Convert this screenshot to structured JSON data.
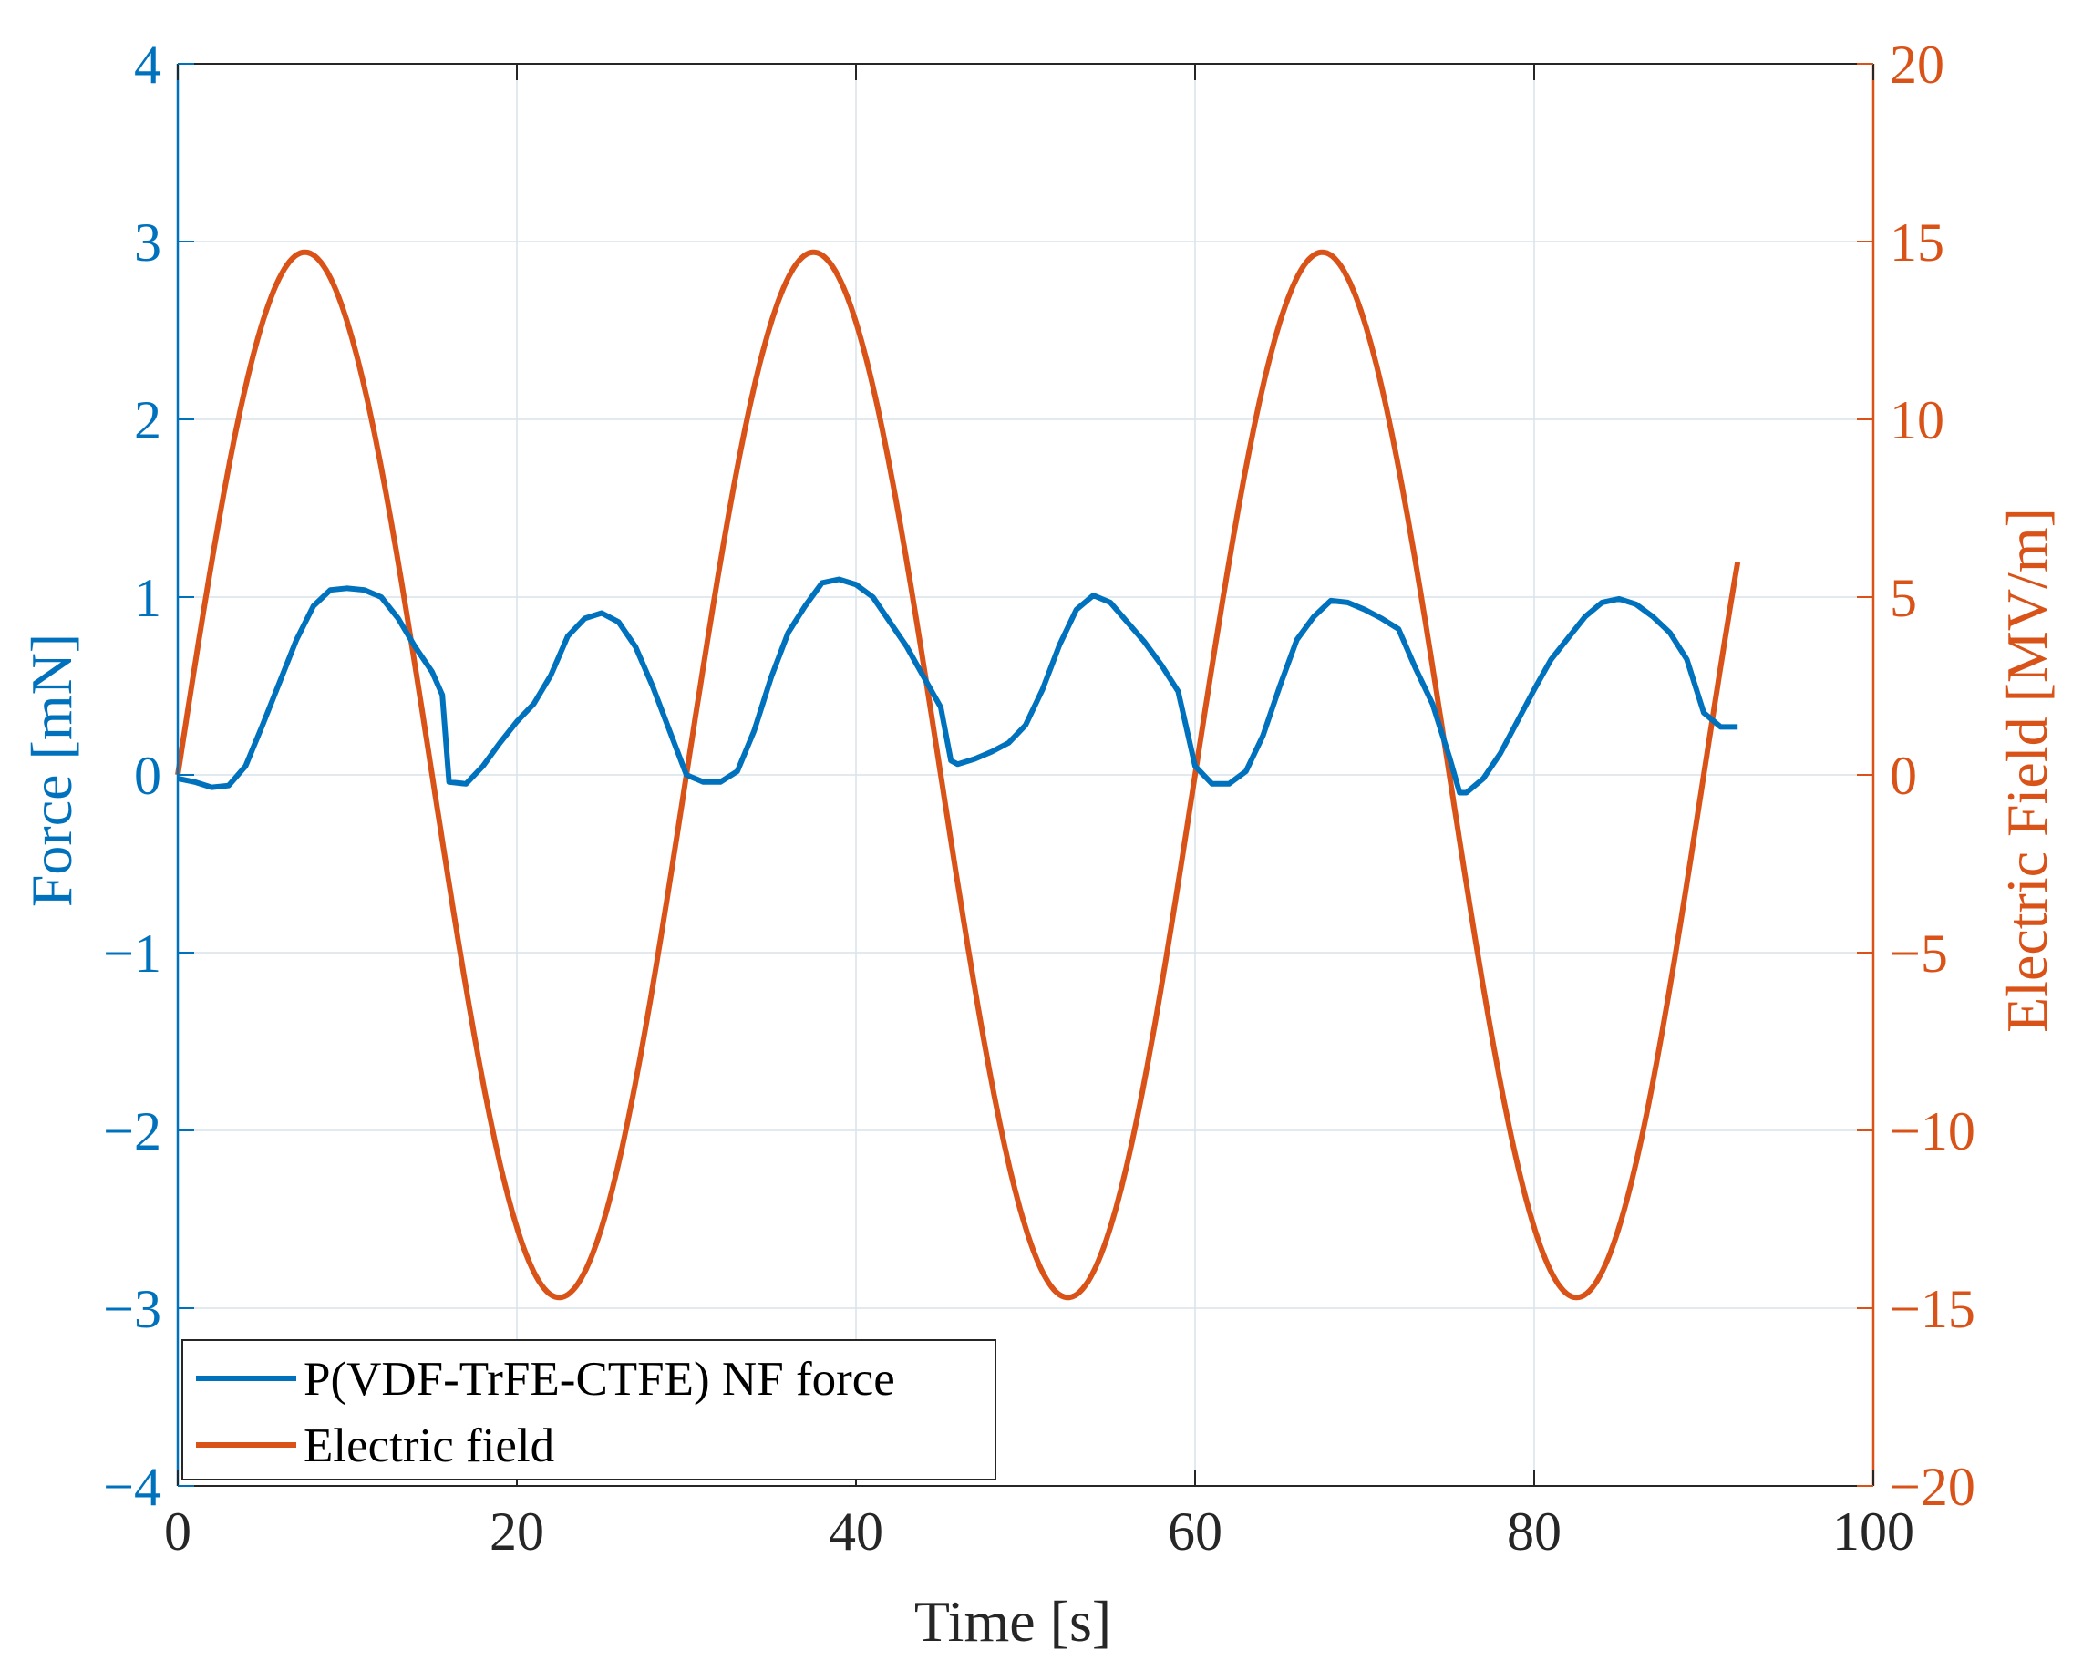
{
  "colors": {
    "left": "#0072BD",
    "right": "#D95319",
    "grid": "#d9e3ec",
    "axis_dark": "#262626"
  },
  "chart_data": {
    "type": "line",
    "xlabel": "Time [s]",
    "ylabel_left": "Force [mN]",
    "ylabel_right": "Electric Field [MV/m]",
    "xlim": [
      0,
      100
    ],
    "ylim_left": [
      -4,
      4
    ],
    "ylim_right": [
      -20,
      20
    ],
    "x_ticks": [
      "0",
      "20",
      "40",
      "60",
      "80",
      "100"
    ],
    "y_left_ticks": [
      "−4",
      "−3",
      "−2",
      "−1",
      "0",
      "1",
      "2",
      "3",
      "4"
    ],
    "y_right_ticks": [
      "−20",
      "−15",
      "−10",
      "−5",
      "0",
      "5",
      "10",
      "15",
      "20"
    ],
    "grid": true,
    "legend_position": "bottom-left",
    "series": [
      {
        "name": "P(VDF-TrFE-CTFE) NF force",
        "axis": "left",
        "x": [
          0,
          1,
          2,
          3,
          4,
          5,
          6,
          7,
          8,
          9,
          10,
          11,
          12,
          13,
          14,
          15,
          15.6,
          16,
          17,
          18,
          19,
          20,
          21,
          22,
          23,
          24,
          25,
          26,
          27,
          28,
          29,
          30,
          31,
          32,
          33,
          34,
          35,
          36,
          37,
          38,
          39,
          40,
          41,
          42,
          43,
          44,
          45,
          45.6,
          46,
          47,
          48,
          49,
          50,
          51,
          52,
          53,
          54,
          55,
          56,
          57,
          58,
          59,
          60,
          61,
          62,
          63,
          64,
          65,
          66,
          67,
          68,
          69,
          70,
          71,
          72,
          73,
          74,
          75,
          75.6,
          76,
          77,
          78,
          79,
          80,
          81,
          82,
          83,
          84,
          85,
          86,
          87,
          88,
          89,
          90,
          91,
          92
        ],
        "y": [
          -0.02,
          -0.04,
          -0.07,
          -0.06,
          0.05,
          0.28,
          0.52,
          0.76,
          0.95,
          1.04,
          1.05,
          1.04,
          1.0,
          0.88,
          0.72,
          0.58,
          0.45,
          -0.04,
          -0.05,
          0.05,
          0.18,
          0.3,
          0.4,
          0.56,
          0.78,
          0.88,
          0.91,
          0.86,
          0.72,
          0.5,
          0.25,
          0.0,
          -0.04,
          -0.04,
          0.02,
          0.25,
          0.55,
          0.8,
          0.95,
          1.08,
          1.1,
          1.07,
          1.0,
          0.86,
          0.72,
          0.55,
          0.38,
          0.08,
          0.06,
          0.09,
          0.13,
          0.18,
          0.28,
          0.48,
          0.73,
          0.93,
          1.01,
          0.97,
          0.86,
          0.75,
          0.62,
          0.47,
          0.05,
          -0.05,
          -0.05,
          0.02,
          0.22,
          0.5,
          0.76,
          0.89,
          0.98,
          0.97,
          0.93,
          0.88,
          0.82,
          0.6,
          0.4,
          0.1,
          -0.1,
          -0.1,
          -0.02,
          0.12,
          0.3,
          0.48,
          0.65,
          0.77,
          0.89,
          0.97,
          0.99,
          0.96,
          0.89,
          0.8,
          0.65,
          0.35,
          0.27,
          0.27
        ]
      },
      {
        "name": "Electric field",
        "axis": "right",
        "function": "14.7 * sin(2*pi*x/30)",
        "amplitude": 14.7,
        "period": 30,
        "x_range": [
          0,
          92
        ]
      }
    ]
  }
}
